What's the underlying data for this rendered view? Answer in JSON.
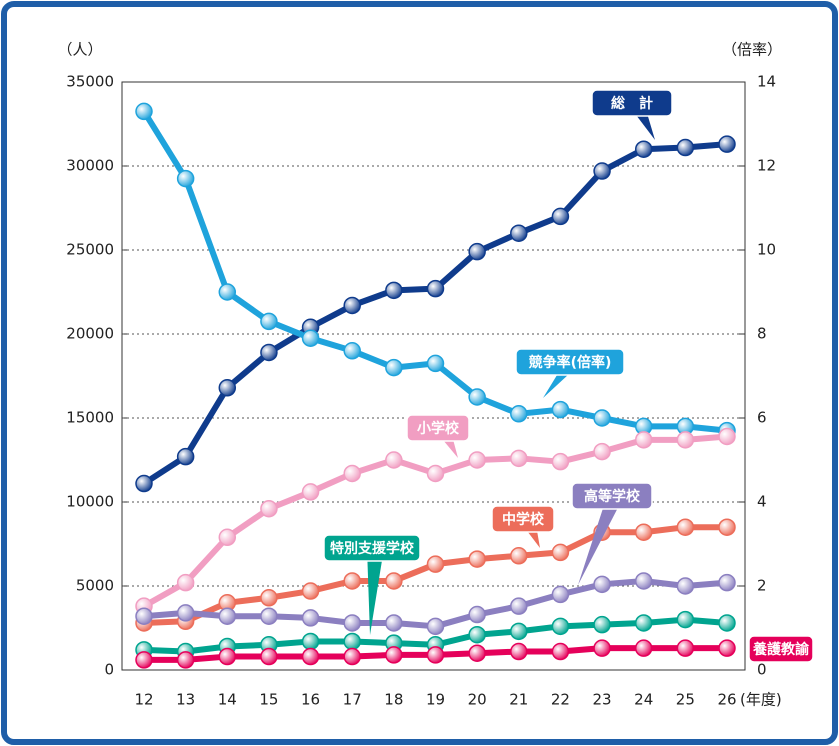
{
  "chart_data": {
    "type": "line",
    "y_label": "（人）",
    "y2_label": "（倍率）",
    "x_label": "(年度)",
    "categories": [
      "12",
      "13",
      "14",
      "15",
      "16",
      "17",
      "18",
      "19",
      "20",
      "21",
      "22",
      "23",
      "24",
      "25",
      "26"
    ],
    "ylim": [
      0,
      35000
    ],
    "yticks": [
      0,
      5000,
      10000,
      15000,
      20000,
      25000,
      30000,
      35000
    ],
    "y2lim": [
      0,
      14
    ],
    "y2ticks": [
      0,
      2,
      4,
      6,
      8,
      10,
      12,
      14
    ],
    "grid": true,
    "series": [
      {
        "name": "総　計",
        "color": "#0f3b8c",
        "values": [
          11100,
          12700,
          16800,
          18900,
          20400,
          21700,
          22600,
          22700,
          24900,
          26000,
          27000,
          29700,
          31000,
          31100,
          31300
        ]
      },
      {
        "name": "競争率(倍率)",
        "color": "#1fa3dc",
        "axis": "y2",
        "values": [
          13.3,
          11.7,
          9.0,
          8.3,
          7.9,
          7.6,
          7.2,
          7.3,
          6.5,
          6.1,
          6.2,
          6.0,
          5.8,
          5.8,
          5.7
        ]
      },
      {
        "name": "小学校",
        "color": "#f19ec2",
        "values": [
          3800,
          5200,
          7900,
          9600,
          10600,
          11700,
          12500,
          11700,
          12500,
          12600,
          12400,
          13000,
          13700,
          13700,
          13900
        ]
      },
      {
        "name": "中学校",
        "color": "#ec6d5a",
        "values": [
          2800,
          2900,
          4000,
          4300,
          4700,
          5300,
          5300,
          6300,
          6600,
          6800,
          7000,
          8200,
          8200,
          8500,
          8500
        ]
      },
      {
        "name": "高等学校",
        "color": "#8b7fc0",
        "values": [
          3200,
          3400,
          3200,
          3200,
          3100,
          2800,
          2800,
          2600,
          3300,
          3800,
          4500,
          5100,
          5300,
          5000,
          5200
        ]
      },
      {
        "name": "特別支援学校",
        "color": "#00a48f",
        "values": [
          1200,
          1100,
          1400,
          1500,
          1700,
          1700,
          1600,
          1500,
          2100,
          2300,
          2600,
          2700,
          2800,
          3000,
          2800
        ]
      },
      {
        "name": "養護教諭",
        "color": "#e5005a",
        "values": [
          600,
          600,
          800,
          800,
          800,
          800,
          900,
          900,
          1000,
          1100,
          1100,
          1300,
          1300,
          1300,
          1300
        ]
      }
    ]
  }
}
